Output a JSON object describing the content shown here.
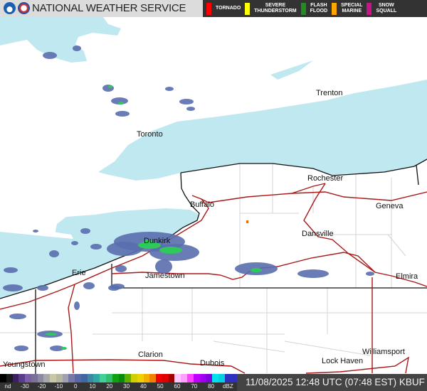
{
  "header": {
    "title": "NATIONAL WEATHER SERVICE",
    "logos": [
      "noaa-logo",
      "nws-logo"
    ]
  },
  "warnings": [
    {
      "label": "TORNADO",
      "color": "#ff0000"
    },
    {
      "label": "SEVERE\nTHUNDERSTORM",
      "color": "#ffff00"
    },
    {
      "label": "FLASH\nFLOOD",
      "color": "#228b22"
    },
    {
      "label": "SPECIAL\nMARINE",
      "color": "#ffa500"
    },
    {
      "label": "SNOW\nSQUALL",
      "color": "#c71585"
    }
  ],
  "map": {
    "water_color": "#c0e8f0",
    "cities": [
      "Trenton",
      "Toronto",
      "Rochester",
      "Buffalo",
      "Geneva",
      "Dansville",
      "Dunkirk",
      "Jamestown",
      "Erie",
      "Elmira",
      "Youngstown",
      "Clarion",
      "Dubois",
      "Lock Haven",
      "Williamsport"
    ]
  },
  "legend": {
    "ticks": [
      "nd",
      "-30",
      "-20",
      "-10",
      "0",
      "10",
      "20",
      "30",
      "40",
      "50",
      "60",
      "70",
      "80",
      "dBZ"
    ],
    "colors": [
      "#000000",
      "#1a1a1a",
      "#3b1f5e",
      "#5a3d8a",
      "#7a5ea8",
      "#7a7098",
      "#8a8aa0",
      "#a8a8a8",
      "#c8c8a8",
      "#b8b8a0",
      "#a0a0b0",
      "#7878a8",
      "#5868a8",
      "#4068a0",
      "#3a8aa0",
      "#30a8a8",
      "#40d098",
      "#30c070",
      "#10a010",
      "#0a8a0a",
      "#60b000",
      "#d0d000",
      "#f0d000",
      "#f0b000",
      "#f08000",
      "#f00000",
      "#e00000",
      "#a00000",
      "#ffc8ff",
      "#ffa0ff",
      "#ff40ff",
      "#c000ff",
      "#a000f0",
      "#8000e0",
      "#00e0f0",
      "#00d0e0",
      "#3030c0",
      "#3030c0"
    ]
  },
  "timestamp": "11/08/2025 12:48 UTC (07:48 EST) KBUF"
}
